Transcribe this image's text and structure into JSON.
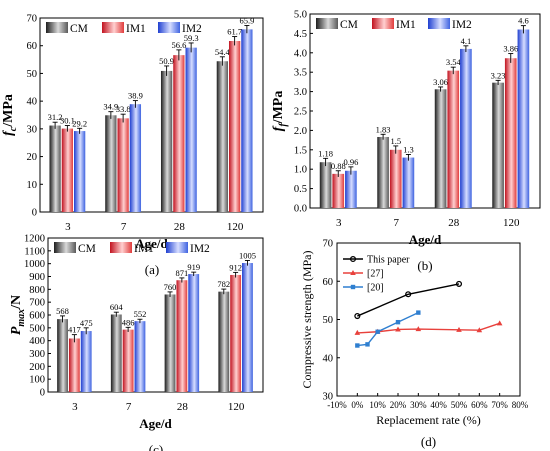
{
  "chart_data": [
    {
      "type": "bar",
      "panel_label": "(a)",
      "ylabel": "f_c/MPa",
      "ylabel_main": "f",
      "ylabel_sub": "c",
      "ylabel_unit": "/MPa",
      "xlabel": "Age/d",
      "categories": [
        "3",
        "7",
        "28",
        "120"
      ],
      "ylim": [
        0,
        70
      ],
      "yticks": [
        "0",
        "10",
        "20",
        "30",
        "40",
        "50",
        "60",
        "70"
      ],
      "legend_position": "top-left",
      "series": [
        {
          "name": "CM",
          "values": [
            31.2,
            34.9,
            50.9,
            54.4
          ],
          "labels": [
            "31.2",
            "34.9",
            "50.9",
            "54.4"
          ],
          "errors": [
            1.2,
            1.3,
            1.8,
            1.6
          ]
        },
        {
          "name": "IM1",
          "values": [
            30.1,
            33.8,
            56.6,
            61.7
          ],
          "labels": [
            "30.1",
            "33.8",
            "56.6",
            "61.7"
          ],
          "errors": [
            1.1,
            1.5,
            1.9,
            1.6
          ]
        },
        {
          "name": "IM2",
          "values": [
            29.2,
            38.9,
            59.3,
            65.9
          ],
          "labels": [
            "29.2",
            "38.9",
            "59.3",
            "65.9"
          ],
          "errors": [
            1.0,
            1.3,
            1.7,
            1.4
          ]
        }
      ]
    },
    {
      "type": "bar",
      "panel_label": "(b)",
      "ylabel": "f_f/MPa",
      "ylabel_main": "f",
      "ylabel_sub": "f",
      "ylabel_unit": "/MPa",
      "xlabel": "Age/d",
      "categories": [
        "3",
        "7",
        "28",
        "120"
      ],
      "ylim": [
        0,
        5
      ],
      "yticks": [
        "0.0",
        "0.5",
        "1.0",
        "1.5",
        "2.0",
        "2.5",
        "3.0",
        "3.5",
        "4.0",
        "4.5",
        "5.0"
      ],
      "legend_position": "top-left",
      "series": [
        {
          "name": "CM",
          "values": [
            1.18,
            1.83,
            3.06,
            3.23
          ],
          "labels": [
            "1.18",
            "1.83",
            "3.06",
            "3.23"
          ],
          "errors": [
            0.1,
            0.07,
            0.06,
            0.06
          ]
        },
        {
          "name": "IM1",
          "values": [
            0.88,
            1.5,
            3.54,
            3.86
          ],
          "labels": [
            "0.88",
            "1.5",
            "3.54",
            "3.86"
          ],
          "errors": [
            0.08,
            0.1,
            0.09,
            0.12
          ]
        },
        {
          "name": "IM2",
          "values": [
            0.96,
            1.3,
            4.1,
            4.6
          ],
          "labels": [
            "0.96",
            "1.3",
            "4.1",
            "4.6"
          ],
          "errors": [
            0.1,
            0.08,
            0.08,
            0.1
          ]
        }
      ]
    },
    {
      "type": "bar",
      "panel_label": "(c)",
      "ylabel": "P_max/N",
      "ylabel_main": "P",
      "ylabel_sub": "max",
      "ylabel_unit": "/N",
      "xlabel": "Age/d",
      "categories": [
        "3",
        "7",
        "28",
        "120"
      ],
      "ylim": [
        0,
        1200
      ],
      "yticks": [
        "0",
        "100",
        "200",
        "300",
        "400",
        "500",
        "600",
        "700",
        "800",
        "900",
        "1000",
        "1100",
        "1200"
      ],
      "legend_position": "top-left",
      "series": [
        {
          "name": "CM",
          "values": [
            568,
            604,
            760,
            782
          ],
          "labels": [
            "568",
            "604",
            "760",
            "782"
          ],
          "errors": [
            25,
            18,
            20,
            20
          ]
        },
        {
          "name": "IM1",
          "values": [
            417,
            486,
            871,
            912
          ],
          "labels": [
            "417",
            "486",
            "871",
            "912"
          ],
          "errors": [
            30,
            18,
            18,
            20
          ]
        },
        {
          "name": "IM2",
          "values": [
            475,
            552,
            919,
            1005
          ],
          "labels": [
            "475",
            "552",
            "919",
            "1005"
          ],
          "errors": [
            25,
            15,
            15,
            20
          ]
        }
      ]
    },
    {
      "type": "line",
      "panel_label": "(d)",
      "xlabel": "Replacement rate (%)",
      "ylabel": "Compressive strength (MPa)",
      "xlim": [
        -10,
        80
      ],
      "ylim": [
        30,
        70
      ],
      "xticks": [
        "-10%",
        "0%",
        "10%",
        "20%",
        "30%",
        "40%",
        "50%",
        "60%",
        "70%",
        "80%"
      ],
      "yticks": [
        "30",
        "40",
        "50",
        "60",
        "70"
      ],
      "legend_position": "top-left",
      "series": [
        {
          "name": "This paper",
          "color": "#000000",
          "marker": "circle",
          "x": [
            0,
            25,
            50
          ],
          "y": [
            50.9,
            56.6,
            59.3
          ]
        },
        {
          "name": "[27]",
          "color": "#e8413c",
          "marker": "triangle",
          "x": [
            0,
            10,
            20,
            30,
            50,
            60,
            70
          ],
          "y": [
            46.5,
            46.8,
            47.4,
            47.5,
            47.3,
            47.2,
            49.0
          ]
        },
        {
          "name": "[20]",
          "color": "#2f7fd0",
          "marker": "square",
          "x": [
            0,
            5,
            10,
            20,
            30
          ],
          "y": [
            43.2,
            43.5,
            46.8,
            49.3,
            51.8
          ]
        }
      ]
    }
  ],
  "colors": {
    "CM": "#4d4d4d",
    "IM1": "#e8413c",
    "IM2": "#3f63e0"
  }
}
